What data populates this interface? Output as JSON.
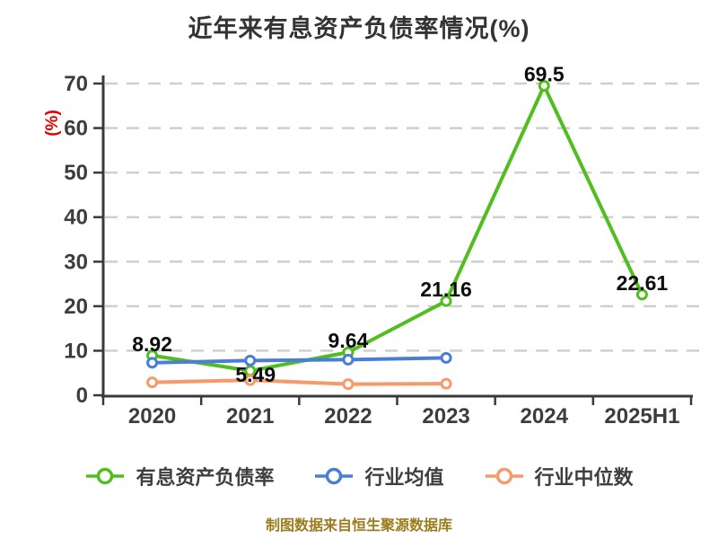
{
  "source_note": "制图数据来自恒生聚源数据库",
  "colors": {
    "title": "#333333",
    "ylabel_red": "#e10000",
    "source_gold": "#9c7c1d",
    "axis": "#3a3a3a",
    "tick": "#3d3d3d",
    "grid": "#cfcfcf",
    "label": "#0d0d0d",
    "background": "#ffffff",
    "series_green": "#50be1e",
    "series_blue": "#4a7ed6",
    "series_orange": "#f7996a"
  },
  "chart_data": {
    "type": "line",
    "title": "近年来有息资产负债率情况(%)",
    "ylabel": "(%)",
    "categories": [
      "2020",
      "2021",
      "2022",
      "2023",
      "2024",
      "2025H1"
    ],
    "series": [
      {
        "id": "interest-bearing-debt-ratio",
        "name": "有息资产负债率",
        "color": "#50be1e",
        "values": [
          8.92,
          5.49,
          9.64,
          21.16,
          69.5,
          22.61
        ],
        "labels": [
          "8.92",
          "5.49",
          "9.64",
          "21.16",
          "69.5",
          "22.61"
        ],
        "labels_below": [
          1
        ]
      },
      {
        "id": "industry-mean",
        "name": "行业均值",
        "color": "#4a7ed6",
        "values": [
          7.3,
          7.8,
          8.0,
          8.4
        ]
      },
      {
        "id": "industry-median",
        "name": "行业中位数",
        "color": "#f7996a",
        "values": [
          2.9,
          3.4,
          2.5,
          2.6
        ]
      }
    ],
    "ylim": [
      0,
      70
    ],
    "yticks": [
      0,
      10,
      20,
      30,
      40,
      50,
      60,
      70
    ],
    "grid": "horizontal dashed",
    "legend_position": "bottom",
    "marker": "circle white-filled"
  }
}
